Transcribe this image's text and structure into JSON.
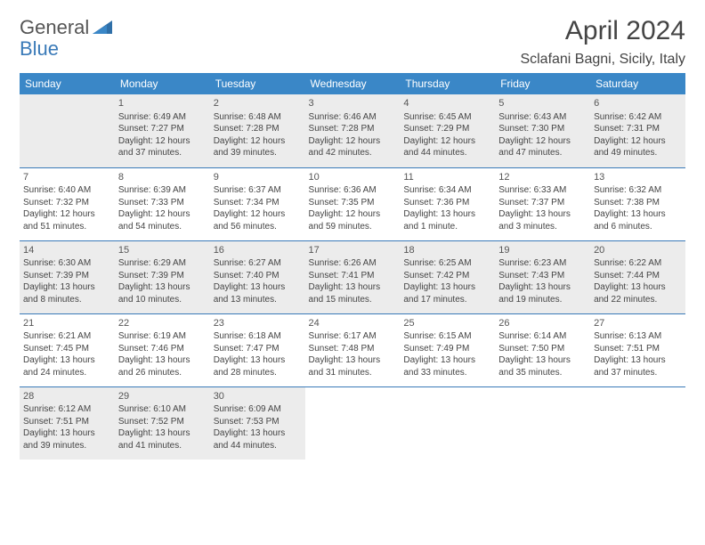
{
  "logo": {
    "part1": "General",
    "part2": "Blue"
  },
  "title": "April 2024",
  "location": "Sclafani Bagni, Sicily, Italy",
  "colors": {
    "accent": "#3a87c7",
    "rule": "#3a7ab8",
    "gray": "#ececec"
  },
  "dayHeaders": [
    "Sunday",
    "Monday",
    "Tuesday",
    "Wednesday",
    "Thursday",
    "Friday",
    "Saturday"
  ],
  "weeks": [
    [
      {
        "gray": true
      },
      {
        "n": "1",
        "gray": true,
        "sr": "Sunrise: 6:49 AM",
        "ss": "Sunset: 7:27 PM",
        "d1": "Daylight: 12 hours",
        "d2": "and 37 minutes."
      },
      {
        "n": "2",
        "gray": true,
        "sr": "Sunrise: 6:48 AM",
        "ss": "Sunset: 7:28 PM",
        "d1": "Daylight: 12 hours",
        "d2": "and 39 minutes."
      },
      {
        "n": "3",
        "gray": true,
        "sr": "Sunrise: 6:46 AM",
        "ss": "Sunset: 7:28 PM",
        "d1": "Daylight: 12 hours",
        "d2": "and 42 minutes."
      },
      {
        "n": "4",
        "gray": true,
        "sr": "Sunrise: 6:45 AM",
        "ss": "Sunset: 7:29 PM",
        "d1": "Daylight: 12 hours",
        "d2": "and 44 minutes."
      },
      {
        "n": "5",
        "gray": true,
        "sr": "Sunrise: 6:43 AM",
        "ss": "Sunset: 7:30 PM",
        "d1": "Daylight: 12 hours",
        "d2": "and 47 minutes."
      },
      {
        "n": "6",
        "gray": true,
        "sr": "Sunrise: 6:42 AM",
        "ss": "Sunset: 7:31 PM",
        "d1": "Daylight: 12 hours",
        "d2": "and 49 minutes."
      }
    ],
    [
      {
        "n": "7",
        "sr": "Sunrise: 6:40 AM",
        "ss": "Sunset: 7:32 PM",
        "d1": "Daylight: 12 hours",
        "d2": "and 51 minutes."
      },
      {
        "n": "8",
        "sr": "Sunrise: 6:39 AM",
        "ss": "Sunset: 7:33 PM",
        "d1": "Daylight: 12 hours",
        "d2": "and 54 minutes."
      },
      {
        "n": "9",
        "sr": "Sunrise: 6:37 AM",
        "ss": "Sunset: 7:34 PM",
        "d1": "Daylight: 12 hours",
        "d2": "and 56 minutes."
      },
      {
        "n": "10",
        "sr": "Sunrise: 6:36 AM",
        "ss": "Sunset: 7:35 PM",
        "d1": "Daylight: 12 hours",
        "d2": "and 59 minutes."
      },
      {
        "n": "11",
        "sr": "Sunrise: 6:34 AM",
        "ss": "Sunset: 7:36 PM",
        "d1": "Daylight: 13 hours",
        "d2": "and 1 minute."
      },
      {
        "n": "12",
        "sr": "Sunrise: 6:33 AM",
        "ss": "Sunset: 7:37 PM",
        "d1": "Daylight: 13 hours",
        "d2": "and 3 minutes."
      },
      {
        "n": "13",
        "sr": "Sunrise: 6:32 AM",
        "ss": "Sunset: 7:38 PM",
        "d1": "Daylight: 13 hours",
        "d2": "and 6 minutes."
      }
    ],
    [
      {
        "n": "14",
        "gray": true,
        "sr": "Sunrise: 6:30 AM",
        "ss": "Sunset: 7:39 PM",
        "d1": "Daylight: 13 hours",
        "d2": "and 8 minutes."
      },
      {
        "n": "15",
        "gray": true,
        "sr": "Sunrise: 6:29 AM",
        "ss": "Sunset: 7:39 PM",
        "d1": "Daylight: 13 hours",
        "d2": "and 10 minutes."
      },
      {
        "n": "16",
        "gray": true,
        "sr": "Sunrise: 6:27 AM",
        "ss": "Sunset: 7:40 PM",
        "d1": "Daylight: 13 hours",
        "d2": "and 13 minutes."
      },
      {
        "n": "17",
        "gray": true,
        "sr": "Sunrise: 6:26 AM",
        "ss": "Sunset: 7:41 PM",
        "d1": "Daylight: 13 hours",
        "d2": "and 15 minutes."
      },
      {
        "n": "18",
        "gray": true,
        "sr": "Sunrise: 6:25 AM",
        "ss": "Sunset: 7:42 PM",
        "d1": "Daylight: 13 hours",
        "d2": "and 17 minutes."
      },
      {
        "n": "19",
        "gray": true,
        "sr": "Sunrise: 6:23 AM",
        "ss": "Sunset: 7:43 PM",
        "d1": "Daylight: 13 hours",
        "d2": "and 19 minutes."
      },
      {
        "n": "20",
        "gray": true,
        "sr": "Sunrise: 6:22 AM",
        "ss": "Sunset: 7:44 PM",
        "d1": "Daylight: 13 hours",
        "d2": "and 22 minutes."
      }
    ],
    [
      {
        "n": "21",
        "sr": "Sunrise: 6:21 AM",
        "ss": "Sunset: 7:45 PM",
        "d1": "Daylight: 13 hours",
        "d2": "and 24 minutes."
      },
      {
        "n": "22",
        "sr": "Sunrise: 6:19 AM",
        "ss": "Sunset: 7:46 PM",
        "d1": "Daylight: 13 hours",
        "d2": "and 26 minutes."
      },
      {
        "n": "23",
        "sr": "Sunrise: 6:18 AM",
        "ss": "Sunset: 7:47 PM",
        "d1": "Daylight: 13 hours",
        "d2": "and 28 minutes."
      },
      {
        "n": "24",
        "sr": "Sunrise: 6:17 AM",
        "ss": "Sunset: 7:48 PM",
        "d1": "Daylight: 13 hours",
        "d2": "and 31 minutes."
      },
      {
        "n": "25",
        "sr": "Sunrise: 6:15 AM",
        "ss": "Sunset: 7:49 PM",
        "d1": "Daylight: 13 hours",
        "d2": "and 33 minutes."
      },
      {
        "n": "26",
        "sr": "Sunrise: 6:14 AM",
        "ss": "Sunset: 7:50 PM",
        "d1": "Daylight: 13 hours",
        "d2": "and 35 minutes."
      },
      {
        "n": "27",
        "sr": "Sunrise: 6:13 AM",
        "ss": "Sunset: 7:51 PM",
        "d1": "Daylight: 13 hours",
        "d2": "and 37 minutes."
      }
    ],
    [
      {
        "n": "28",
        "gray": true,
        "sr": "Sunrise: 6:12 AM",
        "ss": "Sunset: 7:51 PM",
        "d1": "Daylight: 13 hours",
        "d2": "and 39 minutes."
      },
      {
        "n": "29",
        "gray": true,
        "sr": "Sunrise: 6:10 AM",
        "ss": "Sunset: 7:52 PM",
        "d1": "Daylight: 13 hours",
        "d2": "and 41 minutes."
      },
      {
        "n": "30",
        "gray": true,
        "sr": "Sunrise: 6:09 AM",
        "ss": "Sunset: 7:53 PM",
        "d1": "Daylight: 13 hours",
        "d2": "and 44 minutes."
      },
      {},
      {},
      {},
      {}
    ]
  ]
}
